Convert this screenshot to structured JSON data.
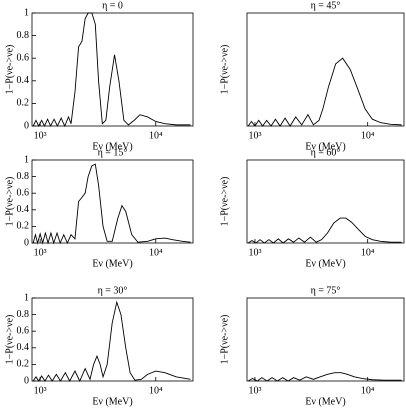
{
  "chart_data": [
    {
      "type": "line",
      "title": "η = 0",
      "xlabel": "Eν (MeV)",
      "ylabel": "1−P(νe->νe)",
      "log_x": true,
      "color": "#000000",
      "xlim": [
        850,
        21000
      ],
      "ylim": [
        0,
        1
      ],
      "xticks": [
        {
          "value": 1000,
          "label": "10³"
        },
        {
          "value": 10000,
          "label": "10⁴"
        }
      ],
      "yticks": [
        0,
        0.2,
        0.4,
        0.6,
        0.8,
        1
      ],
      "x": [
        870,
        920,
        970,
        1030,
        1090,
        1160,
        1230,
        1320,
        1410,
        1520,
        1630,
        1760,
        1850,
        2000,
        2150,
        2300,
        2450,
        2600,
        2800,
        3000,
        3200,
        3450,
        3700,
        4000,
        4400,
        4800,
        5300,
        5800,
        6500,
        7300,
        8500,
        10000,
        12000,
        15000,
        20000
      ],
      "values": [
        0,
        0.05,
        0,
        0.05,
        0,
        0.06,
        0,
        0.06,
        0,
        0.07,
        0,
        0.08,
        0.02,
        0.3,
        0.7,
        0.75,
        0.95,
        1.0,
        1.0,
        0.9,
        0.4,
        0.02,
        0.05,
        0.35,
        0.63,
        0.4,
        0.05,
        0.01,
        0.05,
        0.1,
        0.08,
        0.04,
        0.02,
        0.01,
        0.01
      ]
    },
    {
      "type": "line",
      "title": "η = 45°",
      "xlabel": "Eν (MeV)",
      "ylabel": "1−P(νe->νe)",
      "log_x": true,
      "color": "#000000",
      "xlim": [
        850,
        21000
      ],
      "ylim": [
        0,
        1
      ],
      "xticks": [
        {
          "value": 1000,
          "label": "10³"
        },
        {
          "value": 10000,
          "label": "10⁴"
        }
      ],
      "x": [
        870,
        930,
        1000,
        1080,
        1170,
        1270,
        1390,
        1520,
        1670,
        1850,
        2050,
        2300,
        2600,
        2950,
        3300,
        3700,
        4000,
        4500,
        5200,
        6000,
        7000,
        8000,
        9500,
        11000,
        13000,
        16000,
        20000
      ],
      "values": [
        0,
        0.04,
        0,
        0.05,
        0,
        0.05,
        0,
        0.06,
        0,
        0.07,
        0,
        0.08,
        0.01,
        0.1,
        0.01,
        0.05,
        0.15,
        0.35,
        0.55,
        0.6,
        0.5,
        0.35,
        0.15,
        0.06,
        0.03,
        0.015,
        0.01
      ]
    },
    {
      "type": "line",
      "title": "η = 15°",
      "xlabel": "Eν (MeV)",
      "ylabel": "1−P(νe->νe)",
      "log_x": true,
      "color": "#000000",
      "xlim": [
        850,
        21000
      ],
      "ylim": [
        0,
        1
      ],
      "xticks": [
        {
          "value": 1000,
          "label": "10³"
        },
        {
          "value": 10000,
          "label": "10⁴"
        }
      ],
      "yticks": [
        0,
        0.2,
        0.4,
        0.6,
        0.8,
        1
      ],
      "x": [
        870,
        910,
        950,
        1000,
        1050,
        1110,
        1170,
        1240,
        1310,
        1400,
        1490,
        1600,
        1720,
        1850,
        2000,
        2150,
        2300,
        2450,
        2600,
        2800,
        3000,
        3200,
        3500,
        3800,
        4200,
        4700,
        5100,
        5500,
        6200,
        7000,
        8500,
        10000,
        12000,
        14000,
        17000,
        20000
      ],
      "values": [
        0,
        0.1,
        0,
        0.11,
        0,
        0.12,
        0,
        0.12,
        0,
        0.12,
        0,
        0.1,
        0,
        0.1,
        0.05,
        0.5,
        0.55,
        0.6,
        0.8,
        0.93,
        0.95,
        0.7,
        0.2,
        0.02,
        0.02,
        0.3,
        0.45,
        0.38,
        0.1,
        0.01,
        0.02,
        0.05,
        0.06,
        0.04,
        0.02,
        0.01
      ]
    },
    {
      "type": "line",
      "title": "η = 60°",
      "xlabel": "Eν (MeV)",
      "ylabel": "1−P(νe->νe)",
      "log_x": true,
      "color": "#000000",
      "xlim": [
        850,
        21000
      ],
      "ylim": [
        0,
        1
      ],
      "xticks": [
        {
          "value": 1000,
          "label": "10³"
        },
        {
          "value": 10000,
          "label": "10⁴"
        }
      ],
      "x": [
        870,
        940,
        1020,
        1110,
        1210,
        1330,
        1460,
        1610,
        1780,
        1980,
        2200,
        2450,
        2750,
        3100,
        3500,
        3900,
        4400,
        5000,
        5700,
        6400,
        7200,
        8200,
        9500,
        11000,
        13000,
        16000,
        20000
      ],
      "values": [
        0,
        0.03,
        0,
        0.04,
        0,
        0.04,
        0,
        0.05,
        0,
        0.05,
        0.01,
        0.06,
        0.01,
        0.07,
        0.01,
        0.04,
        0.12,
        0.24,
        0.3,
        0.3,
        0.25,
        0.17,
        0.08,
        0.04,
        0.02,
        0.01,
        0.01
      ]
    },
    {
      "type": "line",
      "title": "η = 30°",
      "xlabel": "Eν (MeV)",
      "ylabel": "1−P(νe->νe)",
      "log_x": true,
      "color": "#000000",
      "xlim": [
        850,
        21000
      ],
      "ylim": [
        0,
        1
      ],
      "xticks": [
        {
          "value": 1000,
          "label": "10³"
        },
        {
          "value": 10000,
          "label": "10⁴"
        }
      ],
      "yticks": [
        0,
        0.2,
        0.4,
        0.6,
        0.8,
        1
      ],
      "x": [
        870,
        920,
        970,
        1030,
        1100,
        1180,
        1270,
        1380,
        1500,
        1650,
        1800,
        2000,
        2200,
        2450,
        2700,
        2900,
        3100,
        3300,
        3500,
        3800,
        4200,
        4600,
        5000,
        5500,
        6000,
        6600,
        7500,
        8500,
        10000,
        12000,
        15000,
        20000
      ],
      "values": [
        0,
        0.05,
        0,
        0.06,
        0,
        0.07,
        0,
        0.08,
        0,
        0.1,
        0,
        0.12,
        0,
        0.15,
        0.02,
        0.2,
        0.3,
        0.2,
        0.05,
        0.2,
        0.7,
        0.95,
        0.8,
        0.4,
        0.1,
        0.01,
        0.02,
        0.08,
        0.12,
        0.1,
        0.05,
        0.02
      ]
    },
    {
      "type": "line",
      "title": "η = 75°",
      "xlabel": "Eν (MeV)",
      "ylabel": "1−P(νe->νe)",
      "log_x": true,
      "color": "#000000",
      "xlim": [
        850,
        21000
      ],
      "ylim": [
        0,
        1
      ],
      "xticks": [
        {
          "value": 1000,
          "label": "10³"
        },
        {
          "value": 10000,
          "label": "10⁴"
        }
      ],
      "x": [
        870,
        950,
        1050,
        1150,
        1280,
        1420,
        1580,
        1760,
        1970,
        2200,
        2500,
        2850,
        3300,
        3800,
        4400,
        5100,
        5800,
        6600,
        7600,
        9000,
        11000,
        14000,
        20000
      ],
      "values": [
        0,
        0.03,
        0,
        0.04,
        0,
        0.04,
        0,
        0.04,
        0,
        0.04,
        0.01,
        0.05,
        0.02,
        0.05,
        0.08,
        0.1,
        0.1,
        0.08,
        0.05,
        0.03,
        0.015,
        0.01,
        0.01
      ]
    }
  ]
}
